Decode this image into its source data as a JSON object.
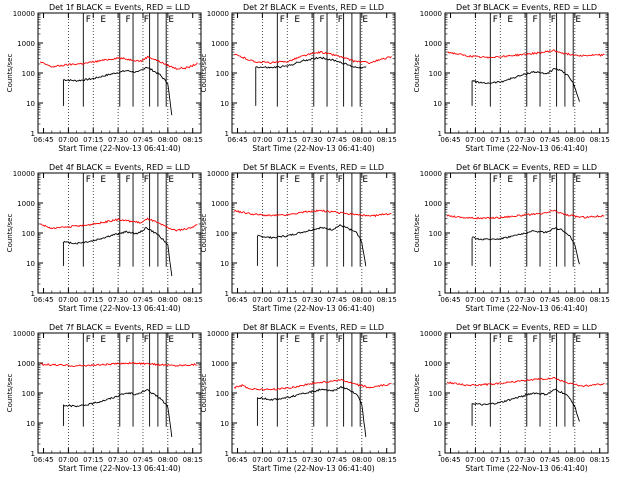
{
  "chart_data": [
    {
      "type": "line",
      "title": "Det 1f BLACK = Events, RED = LLD",
      "xlabel": "Start Time (22-Nov-13 06:41:40)",
      "ylabel": "Counts/sec",
      "x_ticks": [
        "06:45",
        "07:00",
        "07:15",
        "07:30",
        "07:45",
        "08:00",
        "08:15"
      ],
      "y_ticks": [
        "1",
        "10",
        "100",
        "1000",
        "10000"
      ],
      "ylim": [
        1,
        10000
      ],
      "yscale": "log",
      "legend_markers": [
        "E",
        "F",
        "F",
        "F",
        "E"
      ],
      "series": [
        {
          "name": "Events",
          "color": "#000000",
          "start_time": "06:57",
          "end_time": "08:03",
          "x": [
            "06:57",
            "07:05",
            "07:15",
            "07:25",
            "07:35",
            "07:42",
            "07:47",
            "07:50",
            "07:55",
            "08:00",
            "08:03"
          ],
          "values": [
            60,
            55,
            65,
            90,
            120,
            105,
            160,
            130,
            90,
            45,
            2
          ]
        },
        {
          "name": "LLD",
          "color": "#ff0000",
          "start_time": "06:43",
          "end_time": "08:18",
          "x": [
            "06:43",
            "06:50",
            "07:00",
            "07:10",
            "07:20",
            "07:30",
            "07:37",
            "07:44",
            "07:48",
            "07:53",
            "08:00",
            "08:05",
            "08:12",
            "08:18"
          ],
          "values": [
            230,
            160,
            190,
            210,
            260,
            320,
            280,
            250,
            350,
            270,
            180,
            140,
            150,
            210
          ]
        }
      ]
    },
    {
      "type": "line",
      "title": "Det 2f BLACK = Events, RED = LLD",
      "xlabel": "Start Time (22-Nov-13 06:41:40)",
      "ylabel": "Counts/sec",
      "x_ticks": [
        "06:45",
        "07:00",
        "07:15",
        "07:30",
        "07:45",
        "08:00",
        "08:15"
      ],
      "y_ticks": [
        "1",
        "10",
        "100",
        "1000",
        "10000"
      ],
      "ylim": [
        1,
        10000
      ],
      "yscale": "log",
      "legend_markers": [
        "E",
        "F",
        "F",
        "F",
        "E"
      ],
      "series": [
        {
          "name": "Events",
          "color": "#000000",
          "start_time": "06:56",
          "end_time": "08:03",
          "x": [
            "06:56",
            "07:05",
            "07:15",
            "07:25",
            "07:35",
            "07:45",
            "07:55",
            "08:03"
          ],
          "values": [
            160,
            150,
            170,
            260,
            330,
            250,
            160,
            150
          ]
        },
        {
          "name": "LLD",
          "color": "#ff0000",
          "start_time": "06:43",
          "end_time": "08:18",
          "x": [
            "06:43",
            "06:55",
            "07:05",
            "07:15",
            "07:25",
            "07:35",
            "07:45",
            "07:55",
            "08:05",
            "08:18"
          ],
          "values": [
            420,
            240,
            220,
            240,
            380,
            500,
            380,
            250,
            220,
            350
          ]
        }
      ]
    },
    {
      "type": "line",
      "title": "Det 3f BLACK = Events, RED = LLD",
      "xlabel": "Start Time (22-Nov-13 06:41:40)",
      "ylabel": "Counts/sec",
      "x_ticks": [
        "06:45",
        "07:00",
        "07:15",
        "07:30",
        "07:45",
        "08:00",
        "08:15"
      ],
      "y_ticks": [
        "1",
        "10",
        "100",
        "1000",
        "10000"
      ],
      "ylim": [
        1,
        10000
      ],
      "yscale": "log",
      "legend_markers": [
        "E",
        "F",
        "F",
        "F",
        "E"
      ],
      "series": [
        {
          "name": "Events",
          "color": "#000000",
          "start_time": "06:58",
          "end_time": "08:03",
          "x": [
            "06:58",
            "07:05",
            "07:15",
            "07:25",
            "07:35",
            "07:43",
            "07:48",
            "07:53",
            "07:57",
            "08:00",
            "08:03"
          ],
          "values": [
            55,
            45,
            50,
            75,
            110,
            95,
            140,
            110,
            70,
            35,
            10
          ]
        },
        {
          "name": "LLD",
          "color": "#ff0000",
          "start_time": "06:43",
          "end_time": "08:18",
          "x": [
            "06:43",
            "06:55",
            "07:05",
            "07:15",
            "07:30",
            "07:40",
            "07:47",
            "07:55",
            "08:05",
            "08:18"
          ],
          "values": [
            500,
            370,
            330,
            350,
            420,
            480,
            560,
            430,
            380,
            400
          ]
        }
      ]
    },
    {
      "type": "line",
      "title": "Det 4f BLACK = Events, RED = LLD",
      "xlabel": "Start Time (22-Nov-13 06:41:40)",
      "ylabel": "Counts/sec",
      "x_ticks": [
        "06:45",
        "07:00",
        "07:15",
        "07:30",
        "07:45",
        "08:00",
        "08:15"
      ],
      "y_ticks": [
        "1",
        "10",
        "100",
        "1000",
        "10000"
      ],
      "ylim": [
        1,
        10000
      ],
      "yscale": "log",
      "legend_markers": [
        "E",
        "F",
        "F",
        "F",
        "E"
      ],
      "series": [
        {
          "name": "Events",
          "color": "#000000",
          "start_time": "06:57",
          "end_time": "08:03",
          "x": [
            "06:57",
            "07:05",
            "07:15",
            "07:25",
            "07:35",
            "07:42",
            "07:47",
            "07:50",
            "07:55",
            "08:00",
            "08:03"
          ],
          "values": [
            50,
            45,
            55,
            80,
            110,
            95,
            150,
            120,
            80,
            40,
            2
          ]
        },
        {
          "name": "LLD",
          "color": "#ff0000",
          "start_time": "06:43",
          "end_time": "08:18",
          "x": [
            "06:43",
            "06:50",
            "07:00",
            "07:10",
            "07:20",
            "07:30",
            "07:37",
            "07:44",
            "07:48",
            "07:53",
            "08:00",
            "08:05",
            "08:12",
            "08:18"
          ],
          "values": [
            200,
            140,
            160,
            180,
            220,
            280,
            250,
            220,
            300,
            230,
            150,
            120,
            140,
            190
          ]
        }
      ]
    },
    {
      "type": "line",
      "title": "Det 5f BLACK = Events, RED = LLD",
      "xlabel": "Start Time (22-Nov-13 06:41:40)",
      "ylabel": "Counts/sec",
      "x_ticks": [
        "06:45",
        "07:00",
        "07:15",
        "07:30",
        "07:45",
        "08:00",
        "08:15"
      ],
      "y_ticks": [
        "1",
        "10",
        "100",
        "1000",
        "10000"
      ],
      "ylim": [
        1,
        10000
      ],
      "yscale": "log",
      "legend_markers": [
        "E",
        "F",
        "F",
        "F",
        "E"
      ],
      "series": [
        {
          "name": "Events",
          "color": "#000000",
          "start_time": "06:57",
          "end_time": "08:03",
          "x": [
            "06:57",
            "07:05",
            "07:15",
            "07:25",
            "07:35",
            "07:42",
            "07:47",
            "07:52",
            "07:57",
            "08:00",
            "08:03"
          ],
          "values": [
            80,
            70,
            80,
            110,
            150,
            130,
            180,
            140,
            100,
            50,
            5
          ]
        },
        {
          "name": "LLD",
          "color": "#ff0000",
          "start_time": "06:43",
          "end_time": "08:18",
          "x": [
            "06:43",
            "06:55",
            "07:05",
            "07:15",
            "07:25",
            "07:35",
            "07:45",
            "07:55",
            "08:05",
            "08:18"
          ],
          "values": [
            550,
            420,
            380,
            400,
            500,
            560,
            480,
            420,
            360,
            450
          ]
        }
      ]
    },
    {
      "type": "line",
      "title": "Det 6f BLACK = Events, RED = LLD",
      "xlabel": "Start Time (22-Nov-13 06:41:40)",
      "ylabel": "Counts/sec",
      "x_ticks": [
        "06:45",
        "07:00",
        "07:15",
        "07:30",
        "07:45",
        "08:00",
        "08:15"
      ],
      "y_ticks": [
        "1",
        "10",
        "100",
        "1000",
        "10000"
      ],
      "ylim": [
        1,
        10000
      ],
      "yscale": "log",
      "legend_markers": [
        "E",
        "F",
        "F",
        "F",
        "E"
      ],
      "series": [
        {
          "name": "Events",
          "color": "#000000",
          "start_time": "06:58",
          "end_time": "08:03",
          "x": [
            "06:58",
            "07:05",
            "07:15",
            "07:25",
            "07:35",
            "07:43",
            "07:48",
            "07:53",
            "07:57",
            "08:00",
            "08:03"
          ],
          "values": [
            70,
            60,
            65,
            85,
            115,
            105,
            150,
            120,
            80,
            40,
            8
          ]
        },
        {
          "name": "LLD",
          "color": "#ff0000",
          "start_time": "06:43",
          "end_time": "08:18",
          "x": [
            "06:43",
            "06:55",
            "07:05",
            "07:15",
            "07:30",
            "07:40",
            "07:47",
            "07:55",
            "08:05",
            "08:18"
          ],
          "values": [
            380,
            320,
            310,
            330,
            400,
            430,
            560,
            400,
            330,
            380
          ]
        }
      ]
    },
    {
      "type": "line",
      "title": "Det 7f BLACK = Events, RED = LLD",
      "xlabel": "Start Time (22-Nov-13 06:41:40)",
      "ylabel": "Counts/sec",
      "x_ticks": [
        "06:45",
        "07:00",
        "07:15",
        "07:30",
        "07:45",
        "08:00",
        "08:15"
      ],
      "y_ticks": [
        "1",
        "10",
        "100",
        "1000",
        "10000"
      ],
      "ylim": [
        1,
        10000
      ],
      "yscale": "log",
      "legend_markers": [
        "E",
        "F",
        "F",
        "F",
        "E"
      ],
      "series": [
        {
          "name": "Events",
          "color": "#000000",
          "start_time": "06:57",
          "end_time": "08:03",
          "x": [
            "06:57",
            "07:05",
            "07:15",
            "07:25",
            "07:35",
            "07:42",
            "07:47",
            "07:50",
            "07:55",
            "08:00",
            "08:03"
          ],
          "values": [
            40,
            35,
            45,
            65,
            100,
            90,
            130,
            100,
            70,
            35,
            2
          ]
        },
        {
          "name": "LLD",
          "color": "#ff0000",
          "start_time": "06:43",
          "end_time": "08:18",
          "x": [
            "06:43",
            "06:55",
            "07:05",
            "07:15",
            "07:25",
            "07:35",
            "07:45",
            "07:55",
            "08:05",
            "08:18"
          ],
          "values": [
            900,
            850,
            800,
            850,
            900,
            1000,
            950,
            880,
            820,
            900
          ]
        }
      ]
    },
    {
      "type": "line",
      "title": "Det 8f BLACK = Events, RED = LLD",
      "xlabel": "Start Time (22-Nov-13 06:41:40)",
      "ylabel": "Counts/sec",
      "x_ticks": [
        "06:45",
        "07:00",
        "07:15",
        "07:30",
        "07:45",
        "08:00",
        "08:15"
      ],
      "y_ticks": [
        "1",
        "10",
        "100",
        "1000",
        "10000"
      ],
      "ylim": [
        1,
        10000
      ],
      "yscale": "log",
      "legend_markers": [
        "E",
        "F",
        "F",
        "F",
        "E"
      ],
      "series": [
        {
          "name": "Events",
          "color": "#000000",
          "start_time": "06:57",
          "end_time": "08:03",
          "x": [
            "06:57",
            "07:05",
            "07:15",
            "07:25",
            "07:35",
            "07:42",
            "07:47",
            "07:52",
            "07:57",
            "08:00",
            "08:03"
          ],
          "values": [
            70,
            60,
            70,
            95,
            130,
            115,
            160,
            130,
            90,
            40,
            2
          ]
        },
        {
          "name": "LLD",
          "color": "#ff0000",
          "start_time": "06:43",
          "end_time": "08:18",
          "x": [
            "06:43",
            "06:48",
            "06:52",
            "07:00",
            "07:10",
            "07:20",
            "07:30",
            "07:40",
            "07:47",
            "07:55",
            "08:05",
            "08:18"
          ],
          "values": [
            150,
            180,
            140,
            130,
            135,
            160,
            210,
            240,
            280,
            200,
            150,
            200
          ]
        }
      ]
    },
    {
      "type": "line",
      "title": "Det 9f BLACK = Events, RED = LLD",
      "xlabel": "Start Time (22-Nov-13 06:41:40)",
      "ylabel": "Counts/sec",
      "x_ticks": [
        "06:45",
        "07:00",
        "07:15",
        "07:30",
        "07:45",
        "08:00",
        "08:15"
      ],
      "y_ticks": [
        "1",
        "10",
        "100",
        "1000",
        "10000"
      ],
      "ylim": [
        1,
        10000
      ],
      "yscale": "log",
      "legend_markers": [
        "E",
        "F",
        "F",
        "F",
        "E"
      ],
      "series": [
        {
          "name": "Events",
          "color": "#000000",
          "start_time": "06:58",
          "end_time": "08:03",
          "x": [
            "06:58",
            "07:05",
            "07:15",
            "07:25",
            "07:35",
            "07:43",
            "07:48",
            "07:53",
            "07:57",
            "08:00",
            "08:03"
          ],
          "values": [
            45,
            40,
            48,
            70,
            100,
            90,
            130,
            100,
            70,
            35,
            10
          ]
        },
        {
          "name": "LLD",
          "color": "#ff0000",
          "start_time": "06:43",
          "end_time": "08:18",
          "x": [
            "06:43",
            "06:55",
            "07:05",
            "07:15",
            "07:30",
            "07:40",
            "07:47",
            "07:55",
            "08:05",
            "08:18"
          ],
          "values": [
            230,
            180,
            190,
            210,
            260,
            290,
            320,
            220,
            170,
            200
          ]
        }
      ]
    }
  ]
}
